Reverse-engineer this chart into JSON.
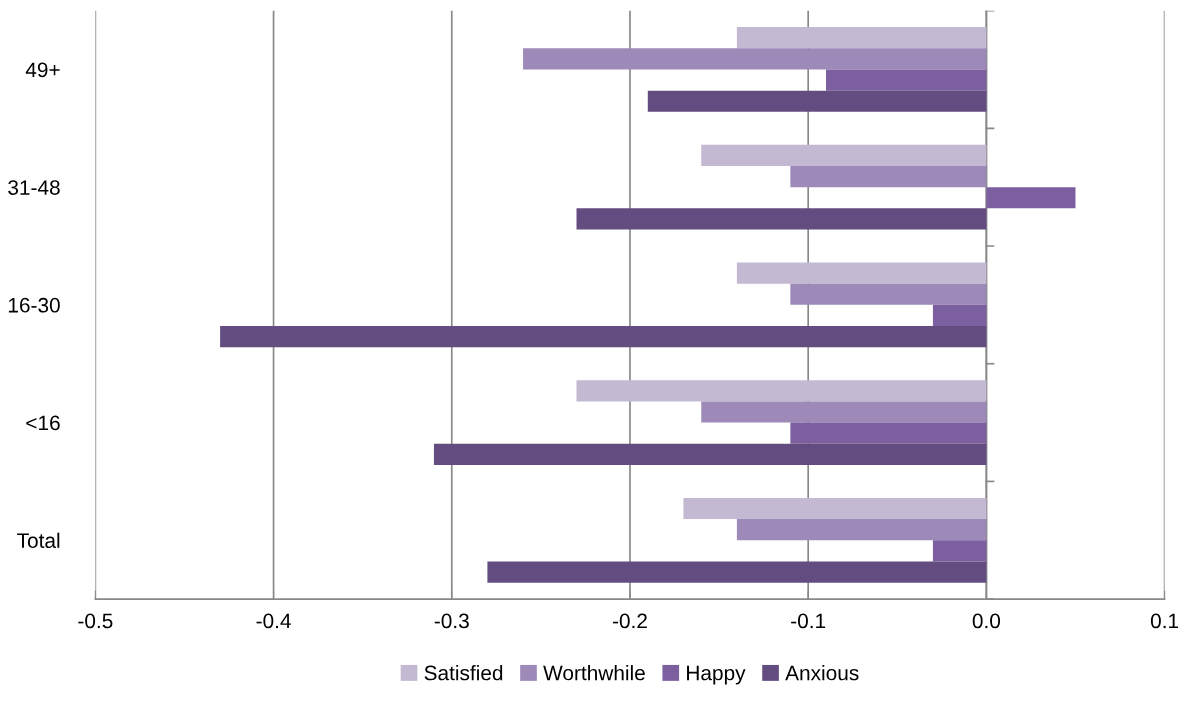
{
  "chart_data": {
    "type": "bar",
    "orientation": "horizontal",
    "categories": [
      "49+",
      "31-48",
      "16-30",
      "<16",
      "Total"
    ],
    "series": [
      {
        "name": "Satisfied",
        "color": "#c4b9d3",
        "values": [
          -0.14,
          -0.16,
          -0.14,
          -0.23,
          -0.17
        ]
      },
      {
        "name": "Worthwhile",
        "color": "#9d8ab8",
        "values": [
          -0.26,
          -0.11,
          -0.11,
          -0.16,
          -0.14
        ]
      },
      {
        "name": "Happy",
        "color": "#7b5f9e",
        "values": [
          -0.09,
          0.05,
          -0.03,
          -0.11,
          -0.03
        ]
      },
      {
        "name": "Anxious",
        "color": "#634d80",
        "values": [
          -0.19,
          -0.23,
          -0.43,
          -0.31,
          -0.28
        ]
      }
    ],
    "xlim": [
      -0.5,
      0.1
    ],
    "xticks": [
      {
        "value": -0.5,
        "label": "-0.5"
      },
      {
        "value": -0.4,
        "label": "-0.4"
      },
      {
        "value": -0.3,
        "label": "-0.3"
      },
      {
        "value": -0.2,
        "label": "-0.2"
      },
      {
        "value": -0.1,
        "label": "-0.1"
      },
      {
        "value": 0,
        "label": "0.0"
      },
      {
        "value": 0.1,
        "label": "0.1"
      }
    ],
    "grid": "x",
    "legend": "bottom"
  }
}
